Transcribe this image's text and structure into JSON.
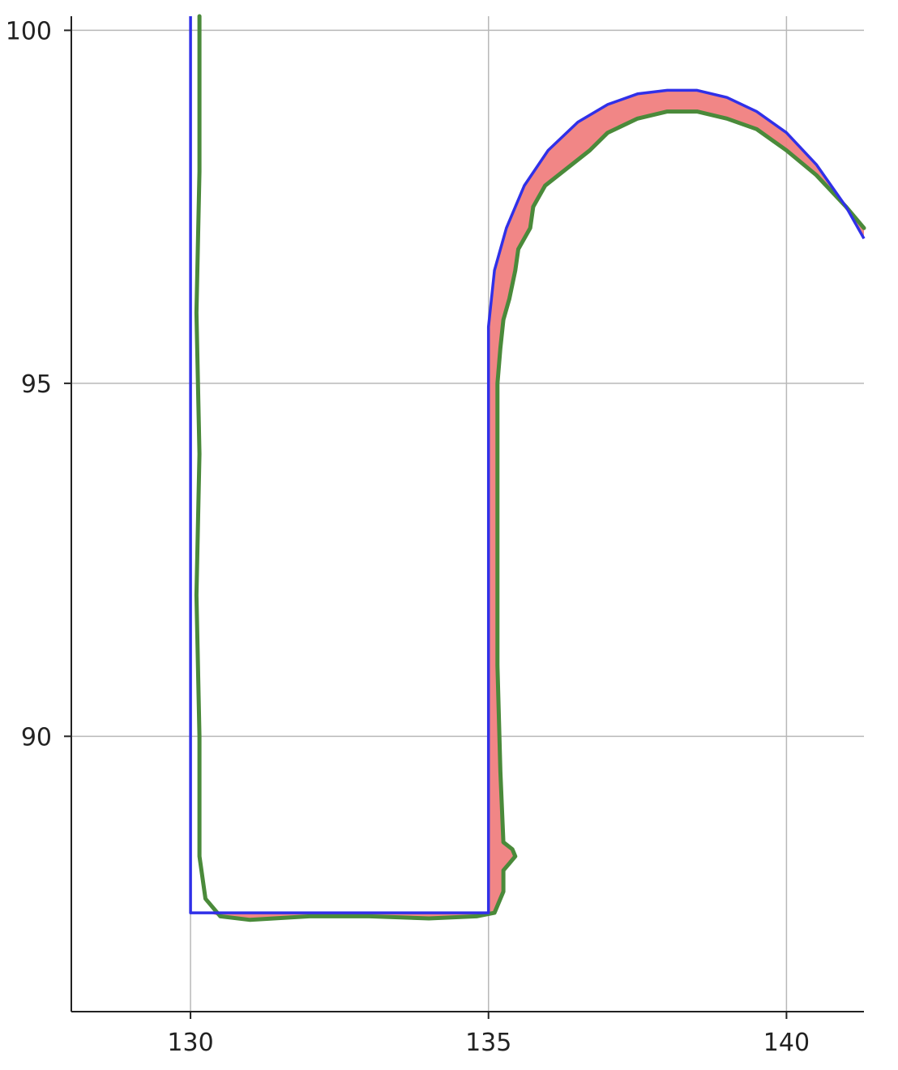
{
  "chart_data": {
    "type": "line",
    "title": "",
    "xlabel": "",
    "ylabel": "",
    "xlim": [
      128.0,
      141.3
    ],
    "ylim": [
      86.1,
      100.2
    ],
    "xticks": [
      130,
      135,
      140
    ],
    "yticks": [
      90,
      95,
      100
    ],
    "xtick_labels": [
      "130",
      "135",
      "140"
    ],
    "ytick_labels": [
      "90",
      "95",
      "100"
    ],
    "grid": true,
    "legend": "none",
    "series": [
      {
        "role": "reference",
        "color": "#3030e8",
        "points": [
          [
            130.0,
            100.2
          ],
          [
            130.0,
            87.5
          ],
          [
            135.0,
            87.5
          ],
          [
            135.0,
            95.8
          ],
          [
            135.1,
            96.6
          ],
          [
            135.3,
            97.2
          ],
          [
            135.6,
            97.8
          ],
          [
            136.0,
            98.3
          ],
          [
            136.5,
            98.7
          ],
          [
            137.0,
            98.95
          ],
          [
            137.5,
            99.1
          ],
          [
            138.0,
            99.15
          ],
          [
            138.5,
            99.15
          ],
          [
            139.0,
            99.05
          ],
          [
            139.5,
            98.85
          ],
          [
            140.0,
            98.55
          ],
          [
            140.5,
            98.1
          ],
          [
            141.0,
            97.5
          ],
          [
            141.3,
            97.05
          ]
        ]
      },
      {
        "role": "measured",
        "color": "#4a8a3a",
        "points": [
          [
            130.15,
            100.2
          ],
          [
            130.15,
            98.0
          ],
          [
            130.1,
            96.0
          ],
          [
            130.15,
            94.0
          ],
          [
            130.1,
            92.0
          ],
          [
            130.15,
            90.0
          ],
          [
            130.15,
            88.3
          ],
          [
            130.25,
            87.7
          ],
          [
            130.5,
            87.45
          ],
          [
            131.0,
            87.4
          ],
          [
            132.0,
            87.45
          ],
          [
            133.0,
            87.45
          ],
          [
            134.0,
            87.42
          ],
          [
            134.8,
            87.45
          ],
          [
            135.1,
            87.5
          ],
          [
            135.25,
            87.8
          ],
          [
            135.25,
            88.1
          ],
          [
            135.35,
            88.2
          ],
          [
            135.45,
            88.3
          ],
          [
            135.4,
            88.4
          ],
          [
            135.25,
            88.5
          ],
          [
            135.2,
            89.5
          ],
          [
            135.15,
            91.0
          ],
          [
            135.15,
            93.0
          ],
          [
            135.15,
            95.0
          ],
          [
            135.2,
            95.5
          ],
          [
            135.25,
            95.9
          ],
          [
            135.35,
            96.2
          ],
          [
            135.45,
            96.6
          ],
          [
            135.5,
            96.9
          ],
          [
            135.7,
            97.2
          ],
          [
            135.75,
            97.5
          ],
          [
            135.95,
            97.8
          ],
          [
            136.4,
            98.1
          ],
          [
            136.7,
            98.3
          ],
          [
            137.0,
            98.55
          ],
          [
            137.5,
            98.75
          ],
          [
            138.0,
            98.85
          ],
          [
            138.5,
            98.85
          ],
          [
            139.0,
            98.75
          ],
          [
            139.5,
            98.6
          ],
          [
            140.0,
            98.3
          ],
          [
            140.5,
            97.95
          ],
          [
            141.0,
            97.5
          ],
          [
            141.3,
            97.2
          ]
        ]
      }
    ],
    "error_fill_color": "#f08080"
  }
}
